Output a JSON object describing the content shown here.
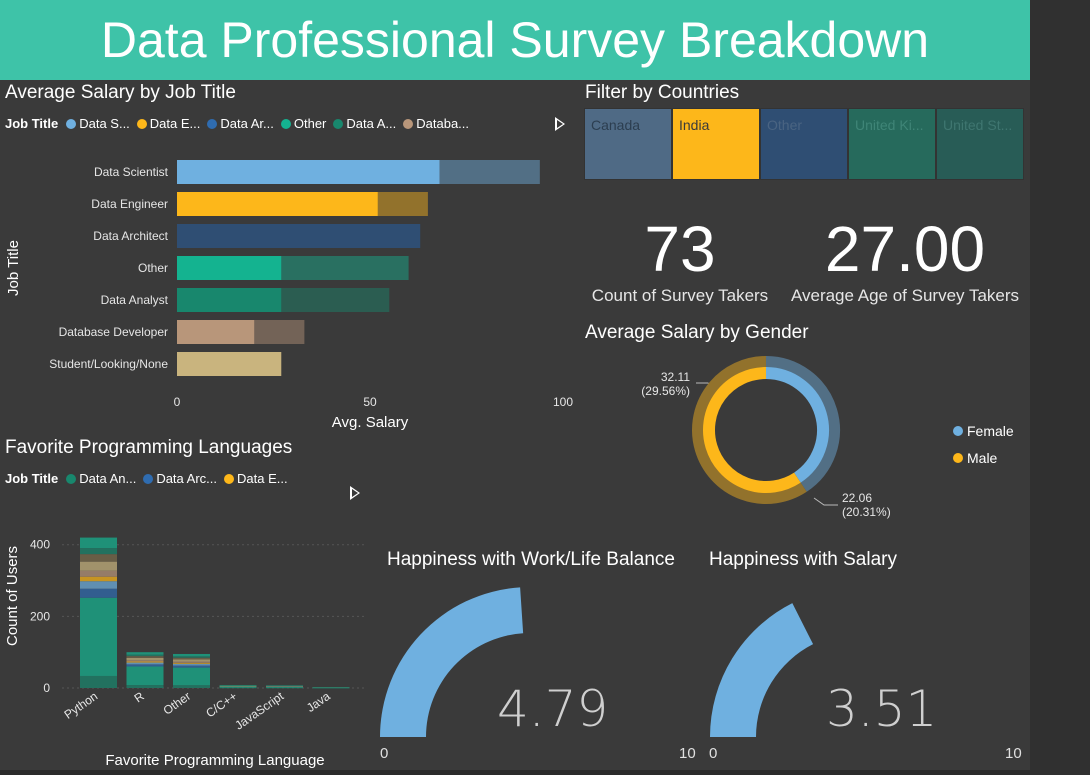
{
  "header": {
    "title": "Data Professional Survey Breakdown"
  },
  "colors": {
    "teal_header": "#3ec3a8",
    "blue": "#6fb0e0",
    "gold": "#fdb71a",
    "navy": "#2f4e73",
    "teal": "#14b390",
    "dark_teal": "#18876d",
    "tan": "#b8967a",
    "khaki": "#c9b47e"
  },
  "salary_by_job": {
    "title": "Average Salary by Job Title",
    "legend_title": "Job Title",
    "legend_items": [
      "Data S...",
      "Data E...",
      "Data Ar...",
      "Other",
      "Data A...",
      "Databa..."
    ],
    "legend_colors": [
      "#6fb0e0",
      "#fdb71a",
      "#2f6cb0",
      "#14b390",
      "#18876d",
      "#b8967a"
    ]
  },
  "country_filter": {
    "title": "Filter by Countries",
    "tiles": [
      {
        "label": "Canada",
        "color": "#4f6a85",
        "text_color": "#2c3e50"
      },
      {
        "label": "India",
        "color": "#fdb71a",
        "text_color": "#3a3a3a"
      },
      {
        "label": "Other",
        "color": "#2f4e73",
        "text_color": "#4a6482"
      },
      {
        "label": "United Ki...",
        "color": "#266a5c",
        "text_color": "#3f8577"
      },
      {
        "label": "United St...",
        "color": "#285c56",
        "text_color": "#3f7670"
      }
    ]
  },
  "cards": {
    "count": {
      "value": "73",
      "label": "Count of Survey Takers"
    },
    "age": {
      "value": "27.00",
      "label": "Average Age of Survey Takers"
    }
  },
  "gender": {
    "title": "Average Salary by Gender",
    "legend": [
      "Female",
      "Male"
    ],
    "male_label_value": "32.11",
    "male_label_pct": "(29.56%)",
    "female_label_value": "22.06",
    "female_label_pct": "(20.31%)"
  },
  "languages": {
    "title": "Favorite Programming Languages",
    "legend_title": "Job Title",
    "legend_items": [
      "Data An...",
      "Data Arc...",
      "Data E..."
    ],
    "legend_colors": [
      "#18876d",
      "#2f6cb0",
      "#fdb71a"
    ]
  },
  "gauges": {
    "worklife": {
      "title": "Happiness with Work/Life Balance",
      "value_text": "4.79",
      "min": "0",
      "max": "10"
    },
    "salary": {
      "title": "Happiness with Salary",
      "value_text": "3.51",
      "min": "0",
      "max": "10"
    }
  },
  "chart_data": [
    {
      "type": "bar",
      "orientation": "horizontal",
      "title": "Average Salary by Job Title",
      "xlabel": "Avg. Salary",
      "ylabel": "Job Title",
      "xlim": [
        0,
        100
      ],
      "xticks": [
        "0",
        "50",
        "100"
      ],
      "categories": [
        "Data Scientist",
        "Data Engineer",
        "Data Architect",
        "Other",
        "Data Analyst",
        "Database Developer",
        "Student/Looking/None"
      ],
      "values": [
        94,
        65,
        63,
        60,
        55,
        33,
        27
      ],
      "highlighted_values": [
        68,
        52,
        63,
        27,
        27,
        20,
        27
      ],
      "colors": [
        "#6fb0e0",
        "#fdb71a",
        "#2f4e73",
        "#14b390",
        "#18876d",
        "#b8967a",
        "#c9b47e"
      ]
    },
    {
      "type": "pie",
      "title": "Average Salary by Gender",
      "labels": [
        "Female",
        "Male"
      ],
      "values": [
        22.06,
        32.11
      ],
      "percents": [
        20.31,
        29.56
      ],
      "colors": [
        "#6fb0e0",
        "#fdb71a"
      ]
    },
    {
      "type": "bar",
      "stacked": true,
      "title": "Favorite Programming Languages",
      "xlabel": "Favorite Programming Language",
      "ylabel": "Count of Users",
      "ylim": [
        0,
        430
      ],
      "yticks": [
        "0",
        "200",
        "400"
      ],
      "categories": [
        "Python",
        "R",
        "Other",
        "C/C++",
        "JavaScript",
        "Java"
      ],
      "totals": [
        420,
        100,
        95,
        8,
        7,
        2
      ]
    },
    {
      "type": "gauge",
      "title": "Happiness with Work/Life Balance",
      "value": 4.79,
      "min": 0,
      "max": 10
    },
    {
      "type": "gauge",
      "title": "Happiness with Salary",
      "value": 3.51,
      "min": 0,
      "max": 10
    }
  ]
}
